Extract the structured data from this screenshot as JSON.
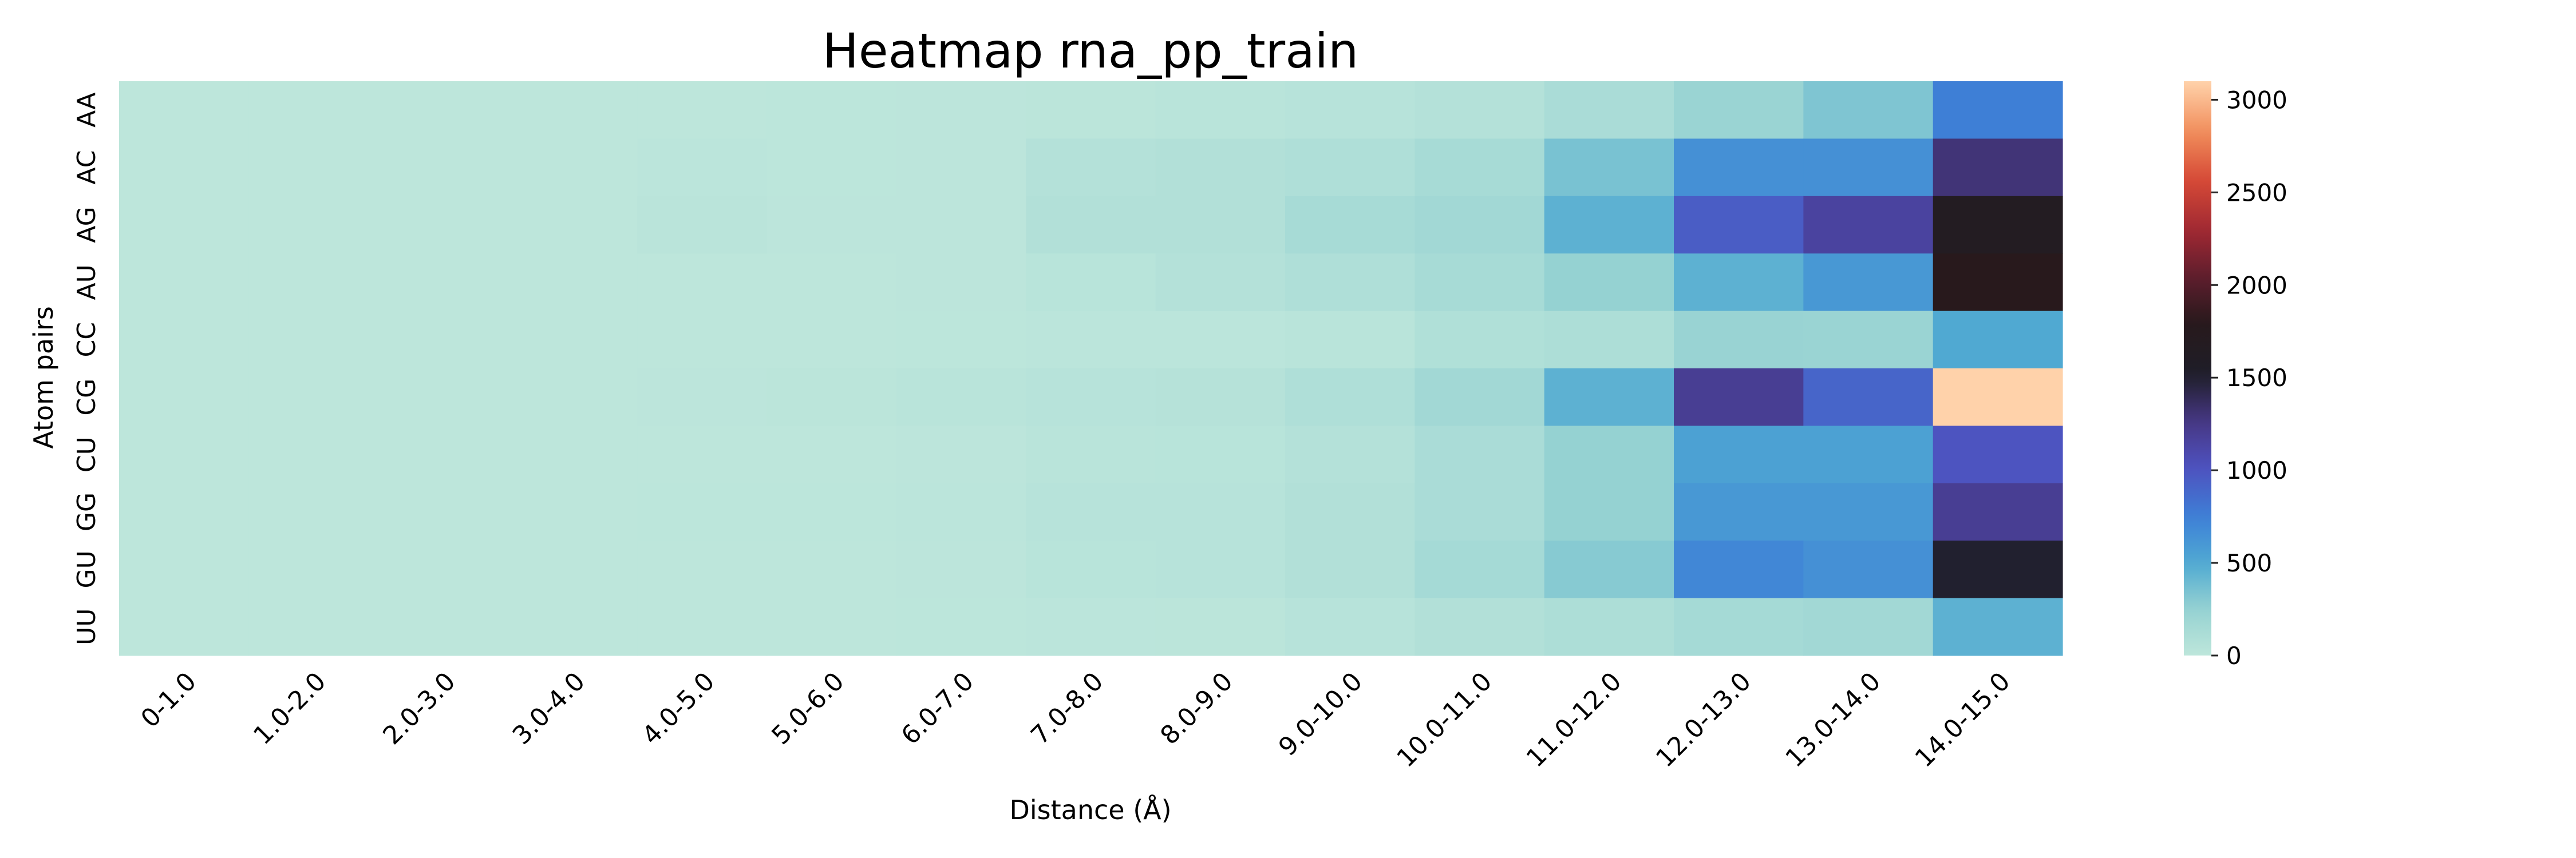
{
  "chart_data": {
    "type": "heatmap",
    "title": "Heatmap rna_pp_train",
    "xlabel": "Distance (Å)",
    "ylabel": "Atom pairs",
    "x_categories": [
      "0-1.0",
      "1.0-2.0",
      "2.0-3.0",
      "3.0-4.0",
      "4.0-5.0",
      "5.0-6.0",
      "6.0-7.0",
      "7.0-8.0",
      "8.0-9.0",
      "9.0-10.0",
      "10.0-11.0",
      "11.0-12.0",
      "12.0-13.0",
      "13.0-14.0",
      "14.0-15.0"
    ],
    "y_categories": [
      "AA",
      "AC",
      "AG",
      "AU",
      "CC",
      "CG",
      "CU",
      "GG",
      "GU",
      "UU"
    ],
    "values": [
      [
        0,
        0,
        0,
        0,
        2,
        5,
        8,
        15,
        25,
        40,
        60,
        120,
        220,
        330,
        750
      ],
      [
        0,
        0,
        0,
        0,
        10,
        6,
        8,
        60,
        70,
        90,
        140,
        350,
        650,
        650,
        1300
      ],
      [
        0,
        0,
        0,
        0,
        20,
        8,
        8,
        70,
        70,
        140,
        170,
        450,
        950,
        1150,
        1650
      ],
      [
        0,
        0,
        0,
        0,
        3,
        3,
        8,
        30,
        60,
        90,
        140,
        250,
        450,
        600,
        1800
      ],
      [
        0,
        0,
        0,
        0,
        0,
        0,
        5,
        10,
        12,
        25,
        80,
        100,
        230,
        220,
        500
      ],
      [
        0,
        0,
        0,
        0,
        8,
        15,
        25,
        40,
        45,
        90,
        170,
        450,
        1200,
        900,
        3100
      ],
      [
        0,
        0,
        0,
        0,
        3,
        3,
        8,
        25,
        30,
        60,
        120,
        250,
        550,
        550,
        1000
      ],
      [
        0,
        0,
        0,
        0,
        5,
        5,
        10,
        35,
        40,
        70,
        120,
        250,
        600,
        600,
        1200
      ],
      [
        0,
        0,
        0,
        0,
        3,
        3,
        8,
        30,
        40,
        70,
        150,
        300,
        700,
        650,
        1500
      ],
      [
        0,
        0,
        0,
        0,
        2,
        3,
        5,
        10,
        15,
        35,
        70,
        100,
        150,
        170,
        450
      ]
    ],
    "colorbar": {
      "min": 0,
      "max": 3100,
      "ticks": [
        0,
        500,
        1000,
        1500,
        2000,
        2500,
        3000
      ]
    },
    "colormap": "icefire",
    "grid": false
  }
}
